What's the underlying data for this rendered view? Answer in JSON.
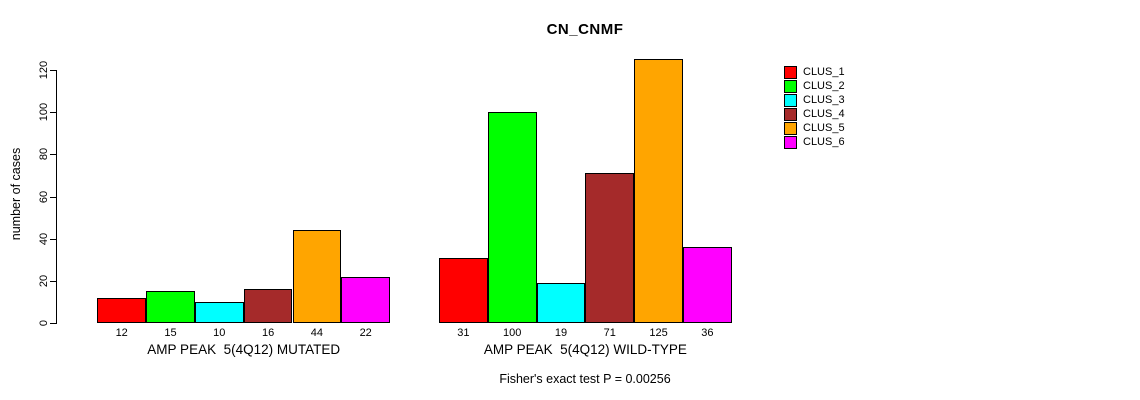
{
  "chart_data": {
    "type": "bar",
    "title": "CN_CNMF",
    "ylabel": "number of cases",
    "footnote": "Fisher's exact test P = 0.00256",
    "ylim": [
      0,
      125
    ],
    "yticks": [
      0,
      20,
      40,
      60,
      80,
      100,
      120
    ],
    "grid": false,
    "legend_position": "right",
    "clusters": [
      {
        "name": "CLUS_1",
        "color": "#FF0000"
      },
      {
        "name": "CLUS_2",
        "color": "#00FF00"
      },
      {
        "name": "CLUS_3",
        "color": "#00FFFF"
      },
      {
        "name": "CLUS_4",
        "color": "#A52A2A"
      },
      {
        "name": "CLUS_5",
        "color": "#FFA500"
      },
      {
        "name": "CLUS_6",
        "color": "#FF00FF"
      }
    ],
    "groups": [
      {
        "label": "AMP PEAK  5(4Q12) MUTATED",
        "values": [
          12,
          15,
          10,
          16,
          44,
          22
        ]
      },
      {
        "label": "AMP PEAK  5(4Q12) WILD-TYPE",
        "values": [
          31,
          100,
          19,
          71,
          125,
          36
        ]
      }
    ]
  }
}
